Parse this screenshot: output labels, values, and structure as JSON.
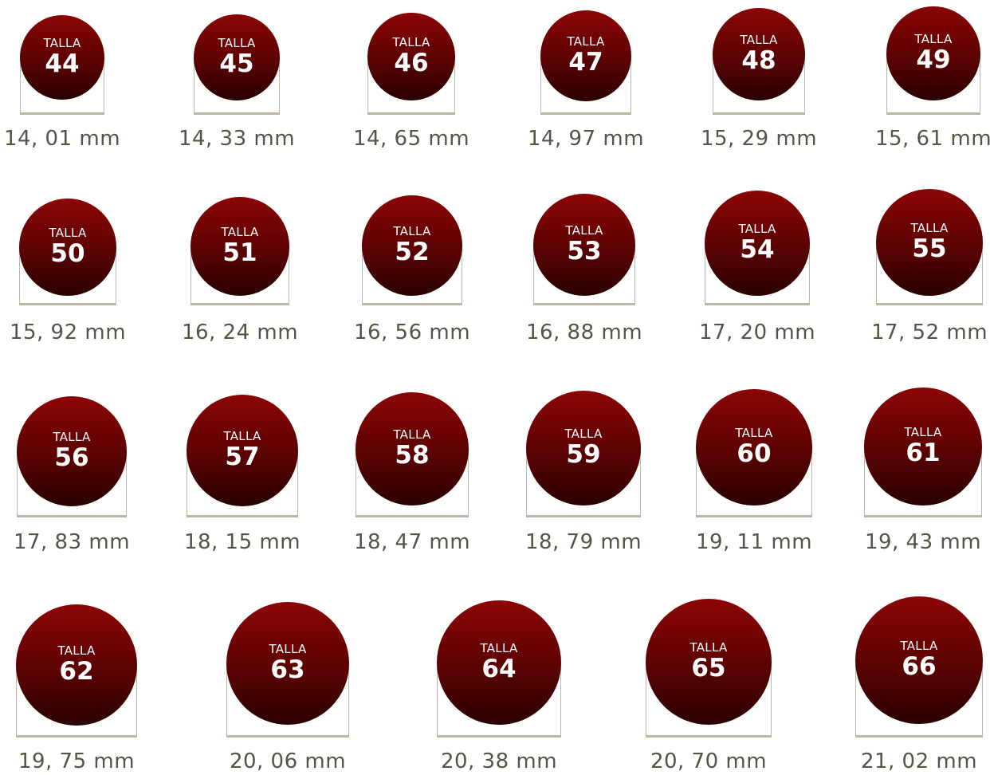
{
  "sizes": [
    {
      "label": "TALLA",
      "number": "44",
      "diameter": "14, 01 mm"
    },
    {
      "label": "TALLA",
      "number": "45",
      "diameter": "14, 33 mm"
    },
    {
      "label": "TALLA",
      "number": "46",
      "diameter": "14, 65 mm"
    },
    {
      "label": "TALLA",
      "number": "47",
      "diameter": "14, 97 mm"
    },
    {
      "label": "TALLA",
      "number": "48",
      "diameter": "15, 29 mm"
    },
    {
      "label": "TALLA",
      "number": "49",
      "diameter": "15, 61 mm"
    },
    {
      "label": "TALLA",
      "number": "50",
      "diameter": "15, 92 mm"
    },
    {
      "label": "TALLA",
      "number": "51",
      "diameter": "16, 24 mm"
    },
    {
      "label": "TALLA",
      "number": "52",
      "diameter": "16, 56 mm"
    },
    {
      "label": "TALLA",
      "number": "53",
      "diameter": "16, 88 mm"
    },
    {
      "label": "TALLA",
      "number": "54",
      "diameter": "17, 20 mm"
    },
    {
      "label": "TALLA",
      "number": "55",
      "diameter": "17, 52 mm"
    },
    {
      "label": "TALLA",
      "number": "56",
      "diameter": "17, 83 mm"
    },
    {
      "label": "TALLA",
      "number": "57",
      "diameter": "18, 15 mm"
    },
    {
      "label": "TALLA",
      "number": "58",
      "diameter": "18, 47 mm"
    },
    {
      "label": "TALLA",
      "number": "59",
      "diameter": "18, 79 mm"
    },
    {
      "label": "TALLA",
      "number": "60",
      "diameter": "19, 11 mm"
    },
    {
      "label": "TALLA",
      "number": "61",
      "diameter": "19, 43 mm"
    },
    {
      "label": "TALLA",
      "number": "62",
      "diameter": "19, 75 mm"
    },
    {
      "label": "TALLA",
      "number": "63",
      "diameter": "20, 06 mm"
    },
    {
      "label": "TALLA",
      "number": "64",
      "diameter": "20, 38 mm"
    },
    {
      "label": "TALLA",
      "number": "65",
      "diameter": "20, 70 mm"
    },
    {
      "label": "TALLA",
      "number": "66",
      "diameter": "21, 02 mm"
    }
  ],
  "colors": {
    "circle_top": "#8c0404",
    "circle_bottom": "#2a0000",
    "ruler": "#bcb7a6",
    "text": "#565448"
  }
}
